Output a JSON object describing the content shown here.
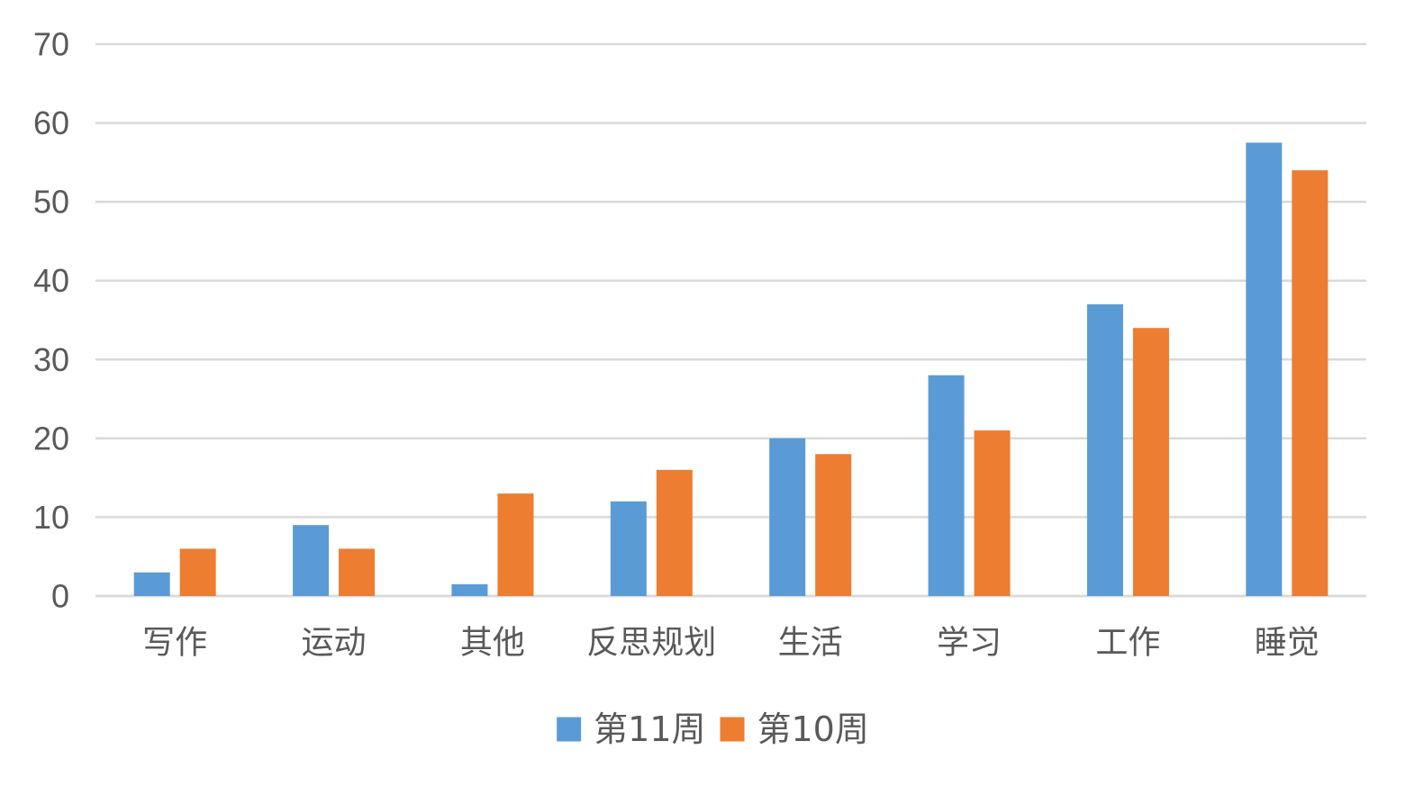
{
  "chart_data": {
    "type": "bar",
    "categories": [
      "写作",
      "运动",
      "其他",
      "反思规划",
      "生活",
      "学习",
      "工作",
      "睡觉"
    ],
    "series": [
      {
        "name": "第11周",
        "color": "#5b9bd5",
        "values": [
          3,
          9,
          1.5,
          12,
          20,
          28,
          37,
          57.5
        ]
      },
      {
        "name": "第10周",
        "color": "#ed7d31",
        "values": [
          6,
          6,
          13,
          16,
          18,
          21,
          34,
          54
        ]
      }
    ],
    "ylim": [
      0,
      70
    ],
    "yticks": [
      0,
      10,
      20,
      30,
      40,
      50,
      60,
      70
    ],
    "grid": true,
    "legend_position": "bottom-center",
    "title": "",
    "xlabel": "",
    "ylabel": ""
  }
}
